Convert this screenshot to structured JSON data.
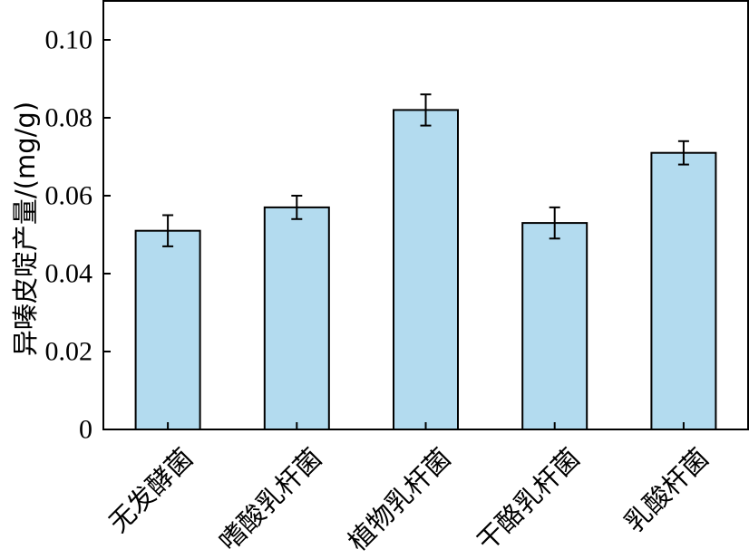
{
  "chart_data": {
    "type": "bar",
    "title": "",
    "xlabel": "",
    "ylabel": "异嗪皮啶产量/(mg/g)",
    "categories": [
      "无发酵菌",
      "嗜酸乳杆菌",
      "植物乳杆菌",
      "干酪乳杆菌",
      "乳酸杆菌"
    ],
    "values": [
      0.051,
      0.057,
      0.082,
      0.053,
      0.071
    ],
    "errors": [
      0.004,
      0.003,
      0.004,
      0.004,
      0.003
    ],
    "ylim": [
      0,
      0.11
    ],
    "yticks": [
      0,
      0.02,
      0.04,
      0.06,
      0.08,
      0.1
    ],
    "ytick_labels": [
      "0",
      "0.02",
      "0.04",
      "0.06",
      "0.08",
      "0.10"
    ],
    "grid": false,
    "bar_color": "#b3dbef",
    "edge_color": "#000000"
  }
}
